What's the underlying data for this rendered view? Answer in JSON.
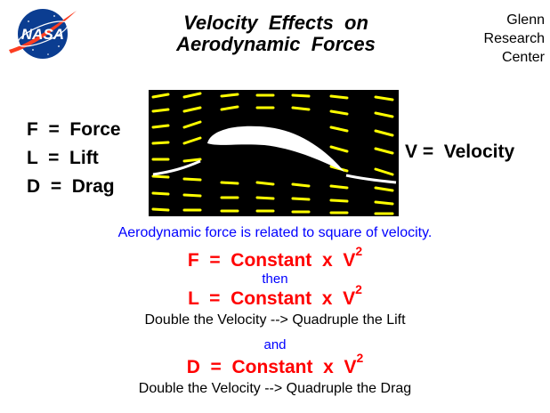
{
  "header": {
    "logo_text": "NASA",
    "title_line1": "Velocity  Effects  on",
    "title_line2": "Aerodynamic  Forces",
    "center_line1": "Glenn",
    "center_line2": "Research",
    "center_line3": "Center"
  },
  "definitions": {
    "force": "F  =  Force",
    "lift": "L  =  Lift",
    "drag": "D  =  Drag"
  },
  "velocity_label": "V =  Velocity",
  "statement": "Aerodynamic force is related to square of velocity.",
  "equations": {
    "force_main": "F  =  Constant  x  V",
    "force_exp": "2",
    "then": "then",
    "lift_main": "L  =  Constant  x  V",
    "lift_exp": "2",
    "lift_note": "Double the Velocity --> Quadruple the Lift",
    "and": "and",
    "drag_main": "D  =  Constant  x  V",
    "drag_exp": "2",
    "drag_note": "Double the Velocity --> Quadruple the Drag"
  },
  "colors": {
    "background": "#ffffff",
    "tunnel_background": "#000000",
    "streamline": "#ffff00",
    "airfoil": "#ffffff",
    "equation": "#ff0000",
    "statement": "#0000ff",
    "logo_blue": "#0b3d91",
    "logo_red": "#fc3d21"
  }
}
